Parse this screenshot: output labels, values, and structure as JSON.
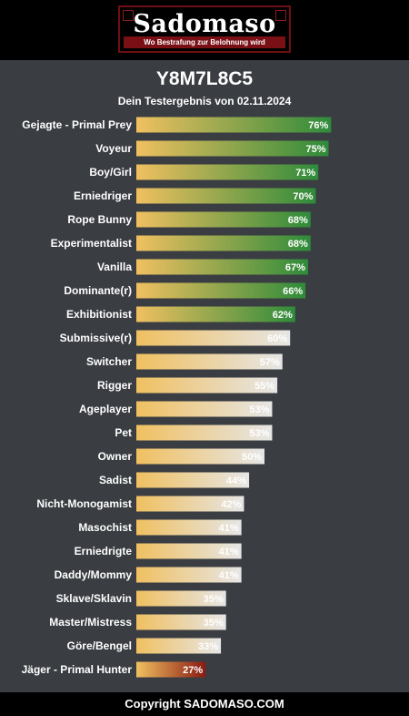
{
  "brand": {
    "logo_text": "Sadomaso",
    "tagline": "Wo Bestrafung zur Belohnung wird"
  },
  "header": {
    "title": "Y8M7L8C5",
    "subtitle": "Dein Testergebnis von 02.11.2024"
  },
  "footer": {
    "copyright": "Copyright SADOMASO.COM"
  },
  "colors": {
    "background": "#3a3d42",
    "bar_start": "#f0c060",
    "high_end": "#2e8b3a",
    "mid_end": "#e6e6e6",
    "low_end": "#8b1a12"
  },
  "chart_data": {
    "type": "bar",
    "orientation": "horizontal",
    "unit": "%",
    "xlim": [
      0,
      100
    ],
    "categories": [
      "Gejagte - Primal Prey",
      "Voyeur",
      "Boy/Girl",
      "Erniedriger",
      "Rope Bunny",
      "Experimentalist",
      "Vanilla",
      "Dominante(r)",
      "Exhibitionist",
      "Submissive(r)",
      "Switcher",
      "Rigger",
      "Ageplayer",
      "Pet",
      "Owner",
      "Sadist",
      "Nicht-Monogamist",
      "Masochist",
      "Erniedrigte",
      "Daddy/Mommy",
      "Sklave/Sklavin",
      "Master/Mistress",
      "Göre/Bengel",
      "Jäger - Primal Hunter"
    ],
    "values": [
      76,
      75,
      71,
      70,
      68,
      68,
      67,
      66,
      62,
      60,
      57,
      55,
      53,
      53,
      50,
      44,
      42,
      41,
      41,
      41,
      35,
      35,
      33,
      27
    ],
    "value_labels": [
      "76%",
      "75%",
      "71%",
      "70%",
      "68%",
      "68%",
      "67%",
      "66%",
      "62%",
      "60%",
      "57%",
      "55%",
      "53%",
      "53%",
      "50%",
      "44%",
      "42%",
      "41%",
      "41%",
      "41%",
      "35%",
      "35%",
      "33%",
      "27%"
    ],
    "tiers": [
      "high",
      "high",
      "high",
      "high",
      "high",
      "high",
      "high",
      "high",
      "high",
      "mid",
      "mid",
      "mid",
      "mid",
      "mid",
      "mid",
      "mid",
      "mid",
      "mid",
      "mid",
      "mid",
      "mid",
      "mid",
      "mid",
      "low"
    ]
  }
}
